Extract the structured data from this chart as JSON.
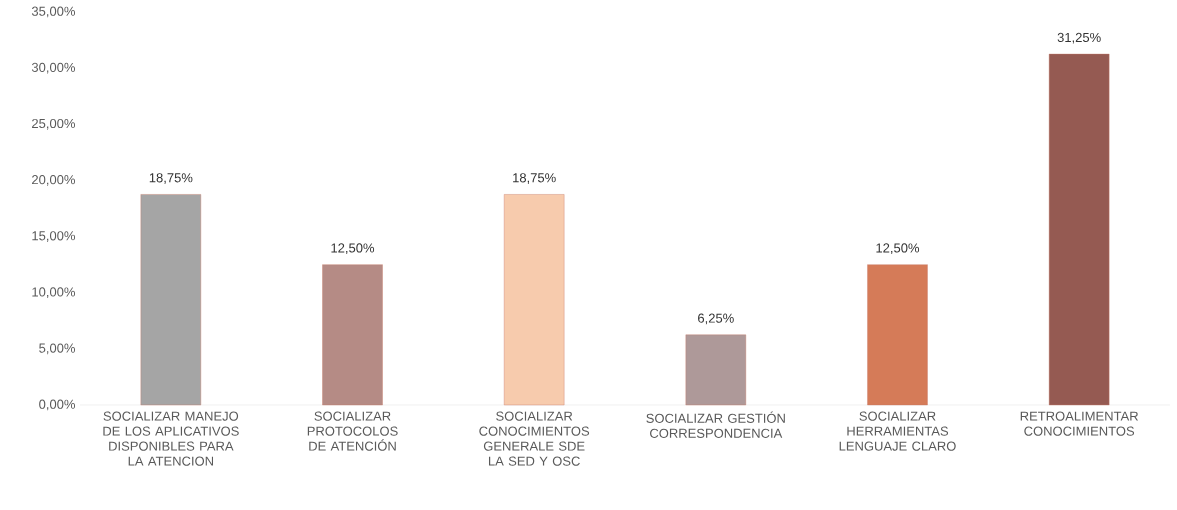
{
  "chart_data": {
    "type": "bar",
    "categories": [
      "SOCIALIZAR MANEJO DE LOS APLICATIVOS DISPONIBLES PARA LA ATENCION",
      "SOCIALIZAR PROTOCOLOS DE ATENCIÓN",
      "SOCIALIZAR CONOCIMIENTOS GENERALE SDE LA SED Y OSC",
      "SOCIALIZAR GESTIÓN CORRESPONDENCIA",
      "SOCIALIZAR HERRAMIENTAS LENGUAJE CLARO",
      "RETROALIMENTAR CONOCIMIENTOS"
    ],
    "values": [
      18.75,
      12.5,
      18.75,
      6.25,
      12.5,
      31.25
    ],
    "value_labels": [
      "18,75%",
      "12,50%",
      "18,75%",
      "6,25%",
      "12,50%",
      "31,25%"
    ],
    "colors": [
      "#a5a5a5",
      "#b58b85",
      "#f7cbad",
      "#ae9999",
      "#d57b58",
      "#955a52"
    ],
    "ylim": [
      0,
      35
    ],
    "yticks": [
      {
        "value": 0,
        "label": "0,00%"
      },
      {
        "value": 5,
        "label": "5,00%"
      },
      {
        "value": 10,
        "label": "10,00%"
      },
      {
        "value": 15,
        "label": "15,00%"
      },
      {
        "value": 20,
        "label": "20,00%"
      },
      {
        "value": 25,
        "label": "25,00%"
      },
      {
        "value": 30,
        "label": "30,00%"
      },
      {
        "value": 35,
        "label": "35,00%"
      }
    ],
    "grid": false
  }
}
